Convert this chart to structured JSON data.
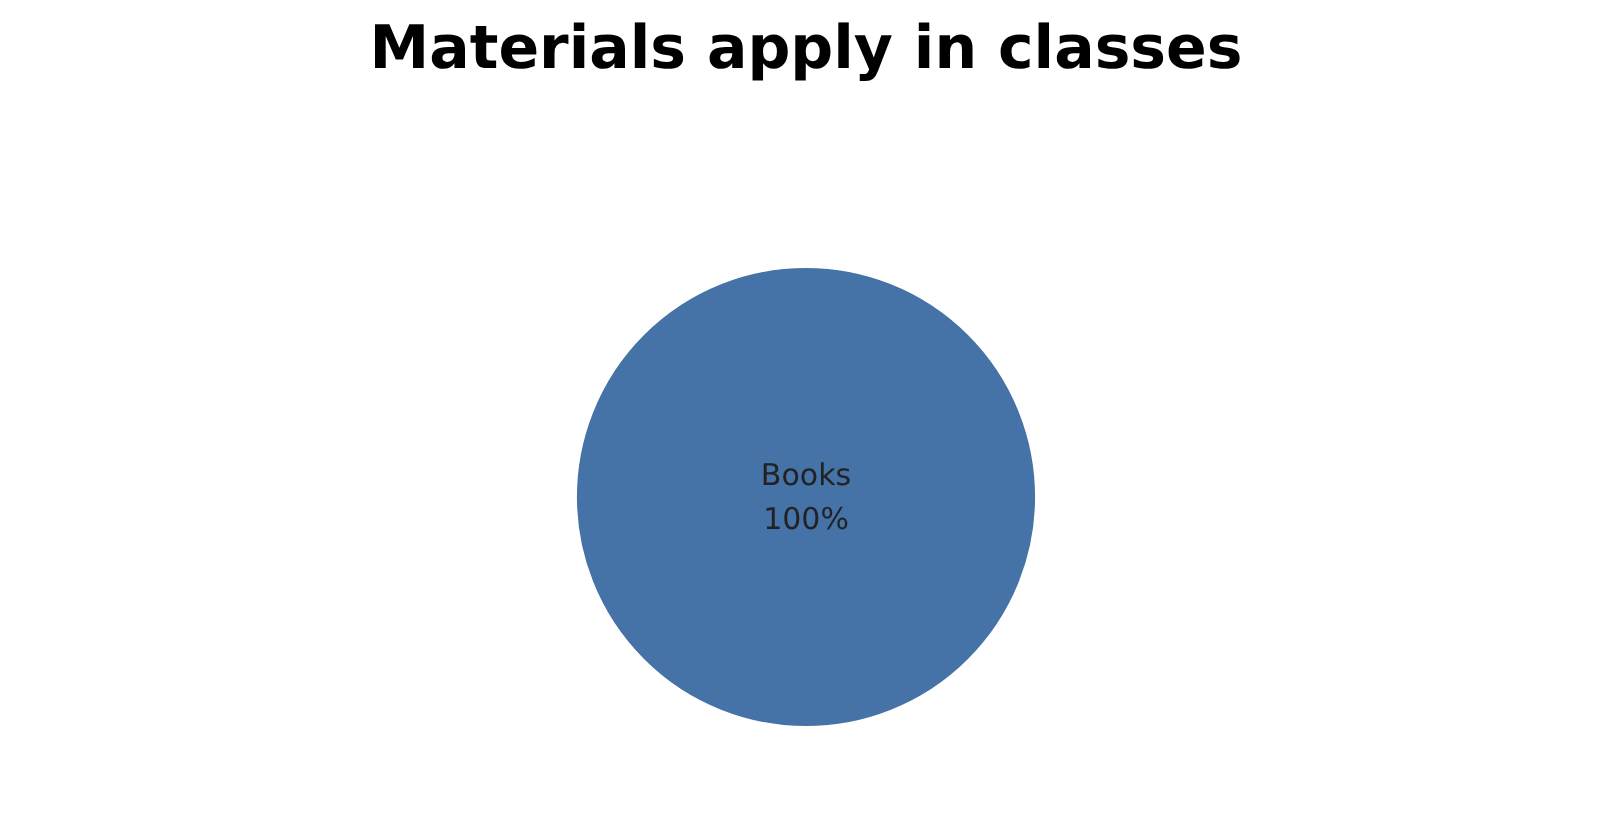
{
  "chart_data": {
    "type": "pie",
    "title": "Materials apply in classes",
    "categories": [
      "Books"
    ],
    "values": [
      100
    ],
    "colors": [
      "#4572a7"
    ],
    "value_labels": [
      "100%"
    ],
    "legend": false
  }
}
